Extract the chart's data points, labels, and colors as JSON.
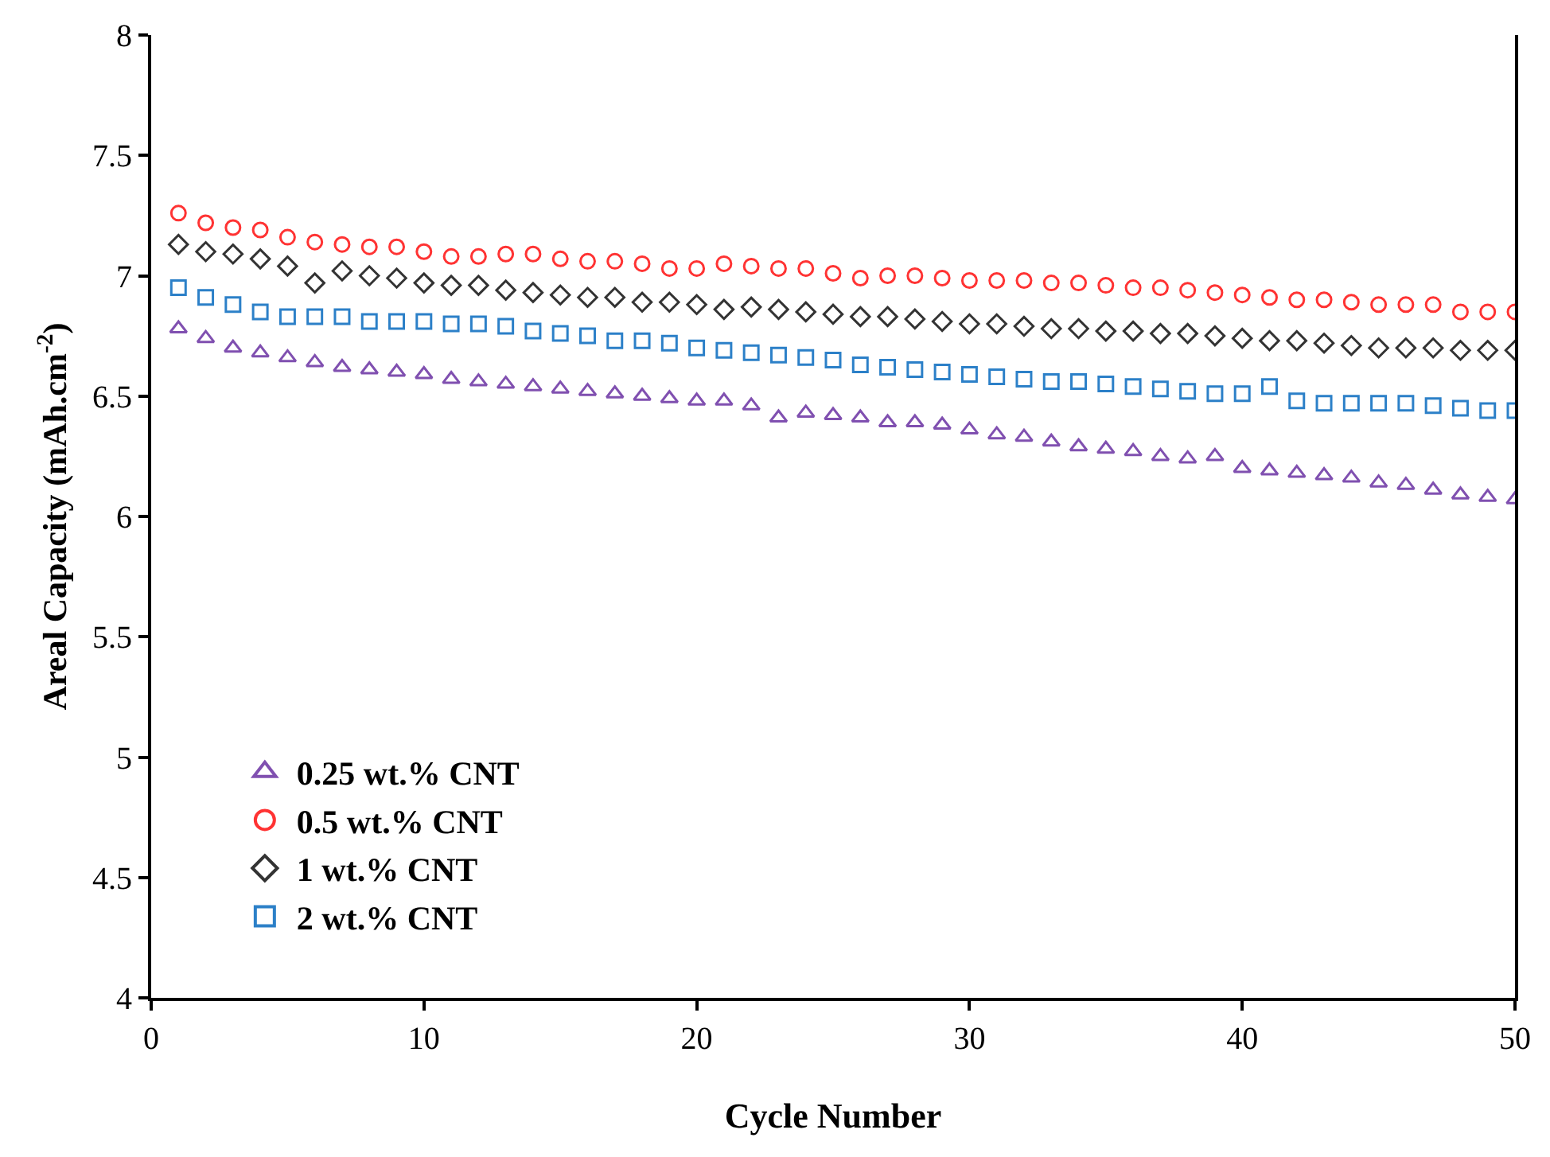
{
  "chart_data": {
    "type": "scatter",
    "xlabel": "Cycle Number",
    "ylabel": "Areal Capacity (mAh.cm$^{-2}$)",
    "x": [
      1,
      2,
      3,
      4,
      5,
      6,
      7,
      8,
      9,
      10,
      11,
      12,
      13,
      14,
      15,
      16,
      17,
      18,
      19,
      20,
      21,
      22,
      23,
      24,
      25,
      26,
      27,
      28,
      29,
      30,
      31,
      32,
      33,
      34,
      35,
      36,
      37,
      38,
      39,
      40,
      41,
      42,
      43,
      44,
      45,
      46,
      47,
      48,
      49,
      50
    ],
    "xlim": [
      0,
      50
    ],
    "xticks": [
      0,
      10,
      20,
      30,
      40,
      50
    ],
    "ylim": [
      4,
      8
    ],
    "yticks": [
      4,
      4.5,
      5,
      5.5,
      6,
      6.5,
      7,
      7.5,
      8
    ],
    "legend": "bottom left",
    "series": [
      {
        "name": "0.25 wt.% CNT",
        "color": "#8050b0",
        "marker": "triangle",
        "values": [
          6.78,
          6.74,
          6.7,
          6.68,
          6.66,
          6.64,
          6.62,
          6.61,
          6.6,
          6.59,
          6.57,
          6.56,
          6.55,
          6.54,
          6.53,
          6.52,
          6.51,
          6.5,
          6.49,
          6.48,
          6.48,
          6.46,
          6.41,
          6.43,
          6.42,
          6.41,
          6.39,
          6.39,
          6.38,
          6.36,
          6.34,
          6.33,
          6.31,
          6.29,
          6.28,
          6.27,
          6.25,
          6.24,
          6.25,
          6.2,
          6.19,
          6.18,
          6.17,
          6.16,
          6.14,
          6.13,
          6.11,
          6.09,
          6.08,
          6.07
        ]
      },
      {
        "name": "0.5 wt.% CNT",
        "color": "#ff3333",
        "marker": "circle",
        "values": [
          7.26,
          7.22,
          7.2,
          7.19,
          7.16,
          7.14,
          7.13,
          7.12,
          7.12,
          7.1,
          7.08,
          7.08,
          7.09,
          7.09,
          7.07,
          7.06,
          7.06,
          7.05,
          7.03,
          7.03,
          7.05,
          7.04,
          7.03,
          7.03,
          7.01,
          6.99,
          7.0,
          7.0,
          6.99,
          6.98,
          6.98,
          6.98,
          6.97,
          6.97,
          6.96,
          6.95,
          6.95,
          6.94,
          6.93,
          6.92,
          6.91,
          6.9,
          6.9,
          6.89,
          6.88,
          6.88,
          6.88,
          6.85,
          6.85,
          6.85
        ]
      },
      {
        "name": "1 wt.% CNT",
        "color": "#333333",
        "marker": "diamond",
        "values": [
          7.13,
          7.1,
          7.09,
          7.07,
          7.04,
          6.97,
          7.02,
          7.0,
          6.99,
          6.97,
          6.96,
          6.96,
          6.94,
          6.93,
          6.92,
          6.91,
          6.91,
          6.89,
          6.89,
          6.88,
          6.86,
          6.87,
          6.86,
          6.85,
          6.84,
          6.83,
          6.83,
          6.82,
          6.81,
          6.8,
          6.8,
          6.79,
          6.78,
          6.78,
          6.77,
          6.77,
          6.76,
          6.76,
          6.75,
          6.74,
          6.73,
          6.73,
          6.72,
          6.71,
          6.7,
          6.7,
          6.7,
          6.69,
          6.69,
          6.69
        ]
      },
      {
        "name": "2 wt.% CNT",
        "color": "#2c80c8",
        "marker": "square",
        "values": [
          6.95,
          6.91,
          6.88,
          6.85,
          6.83,
          6.83,
          6.83,
          6.81,
          6.81,
          6.81,
          6.8,
          6.8,
          6.79,
          6.77,
          6.76,
          6.75,
          6.73,
          6.73,
          6.72,
          6.7,
          6.69,
          6.68,
          6.67,
          6.66,
          6.65,
          6.63,
          6.62,
          6.61,
          6.6,
          6.59,
          6.58,
          6.57,
          6.56,
          6.56,
          6.55,
          6.54,
          6.53,
          6.52,
          6.51,
          6.51,
          6.54,
          6.48,
          6.47,
          6.47,
          6.47,
          6.47,
          6.46,
          6.45,
          6.44,
          6.44
        ]
      }
    ]
  }
}
